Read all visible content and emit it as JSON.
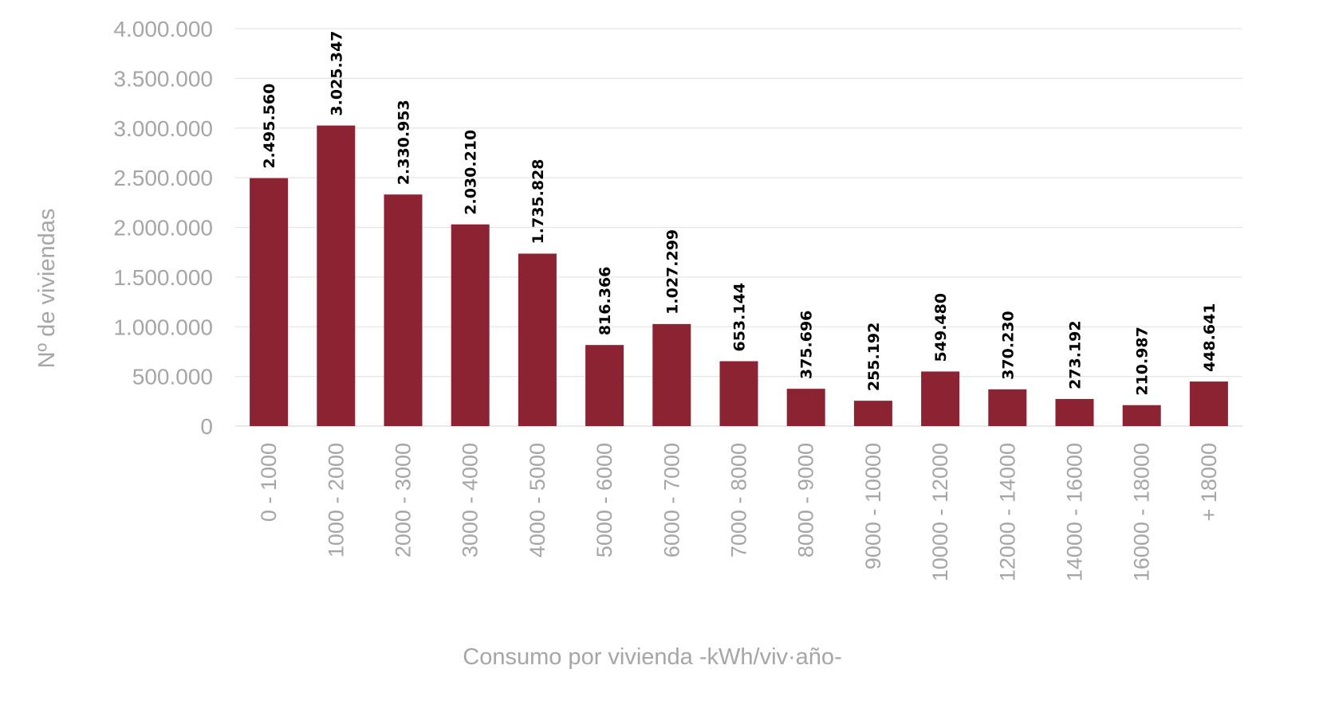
{
  "chart_data": {
    "type": "bar",
    "xlabel": "Consumo por vivienda -kWh/viv·año-",
    "ylabel": "Nº de viviendas",
    "ylim": [
      0,
      4000000
    ],
    "yticks": [
      0,
      500000,
      1000000,
      1500000,
      2000000,
      2500000,
      3000000,
      3500000,
      4000000
    ],
    "ytick_labels": [
      "0",
      "500.000",
      "1.000.000",
      "1.500.000",
      "2.000.000",
      "2.500.000",
      "3.000.000",
      "3.500.000",
      "4.000.000"
    ],
    "grid": true,
    "bar_color": "#8b2332",
    "categories": [
      "0 - 1000",
      "1000 - 2000",
      "2000 - 3000",
      "3000 - 4000",
      "4000 - 5000",
      "5000 - 6000",
      "6000 - 7000",
      "7000 - 8000",
      "8000 - 9000",
      "9000 - 10000",
      "10000 - 12000",
      "12000 - 14000",
      "14000 - 16000",
      "16000 - 18000",
      "+ 18000"
    ],
    "values": [
      2495560,
      3025347,
      2330953,
      2030210,
      1735828,
      816366,
      1027299,
      653144,
      375696,
      255192,
      549480,
      370230,
      273192,
      210987,
      448641
    ],
    "data_labels": [
      "2.495.560",
      "3.025.347",
      "2.330.953",
      "2.030.210",
      "1.735.828",
      "816.366",
      "1.027.299",
      "653.144",
      "375.696",
      "255.192",
      "549.480",
      "370.230",
      "273.192",
      "210.987",
      "448.641"
    ]
  }
}
